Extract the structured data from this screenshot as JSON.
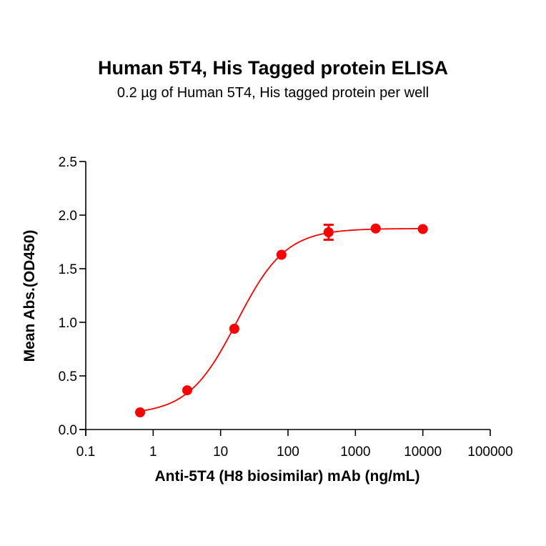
{
  "chart_data": {
    "type": "scatter",
    "title": "Human 5T4, His Tagged protein ELISA",
    "subtitle": "0.2 µg of Human 5T4, His tagged protein per well",
    "xlabel": "Anti-5T4 (H8 biosimilar) mAb (ng/mL)",
    "ylabel": "Mean Abs.(OD450)",
    "xscale": "log",
    "xlim": [
      0.1,
      100000
    ],
    "ylim": [
      0,
      2.5
    ],
    "xticks": [
      0.1,
      1,
      10,
      100,
      1000,
      10000,
      100000
    ],
    "xtick_labels": [
      "0.1",
      "1",
      "10",
      "100",
      "1000",
      "10000",
      "100000"
    ],
    "yticks": [
      0,
      0.5,
      1.0,
      1.5,
      2.0,
      2.5
    ],
    "ytick_labels": [
      "0.0",
      "0.5",
      "1.0",
      "1.5",
      "2.0",
      "2.5"
    ],
    "grid": false,
    "legend": null,
    "series": [
      {
        "name": "Anti-5T4 (H8 biosimilar) mAb",
        "color": "#ff0000",
        "marker": "circle",
        "x": [
          0.64,
          3.2,
          16,
          80,
          400,
          2000,
          10000
        ],
        "y": [
          0.16,
          0.366,
          0.94,
          1.63,
          1.84,
          1.875,
          1.87
        ],
        "yerr": [
          0,
          0,
          0,
          0,
          0.07,
          0,
          0
        ],
        "fit": {
          "model": "4PL",
          "bottom": 0.14,
          "top": 1.875,
          "ec50": 17.5,
          "hill": 1.2
        }
      }
    ]
  },
  "title": "Human 5T4, His Tagged protein ELISA",
  "subtitle": "0.2 µg of Human 5T4, His tagged protein per well",
  "xlabel": "Anti-5T4 (H8 biosimilar) mAb (ng/mL)",
  "ylabel": "Mean Abs.(OD450)"
}
